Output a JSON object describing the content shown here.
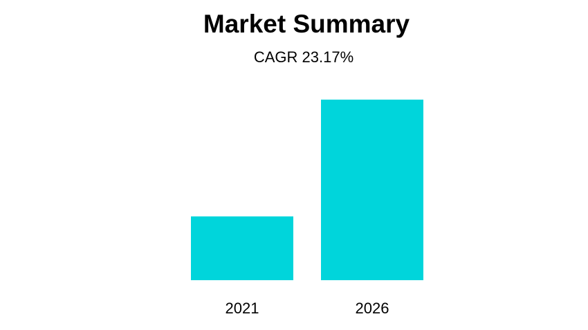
{
  "chart_data": {
    "type": "bar",
    "title": "Market Summary",
    "subtitle": "CAGR 23.17%",
    "categories": [
      "2021",
      "2026"
    ],
    "values": [
      1,
      2.83
    ],
    "xlabel": "",
    "ylabel": "",
    "ylim": [
      0,
      2.83
    ],
    "grid": false,
    "legend": "none",
    "colors": {
      "bar": "#00D5DB"
    }
  }
}
